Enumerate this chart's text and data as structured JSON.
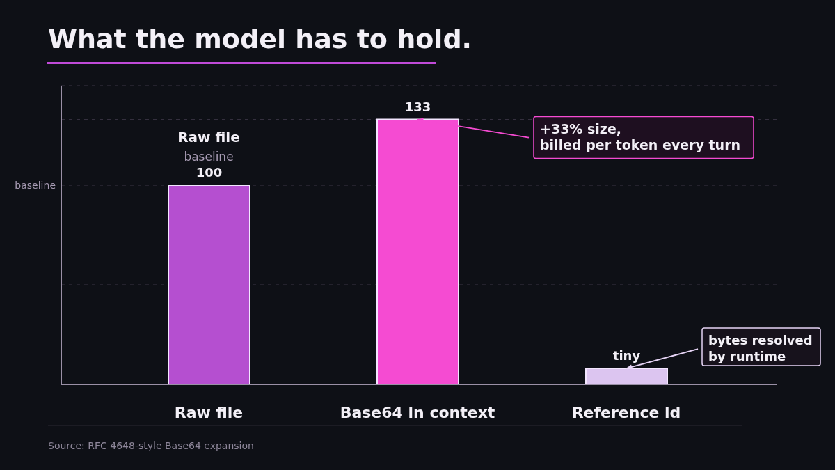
{
  "chart_data": {
    "type": "bar",
    "title": "What the model has to hold.",
    "categories": [
      "Raw file",
      "Base64 in context",
      "Reference id"
    ],
    "values": [
      100,
      133,
      8
    ],
    "colors": [
      "#b54fd0",
      "#f54bd2",
      "#dcc5f0"
    ],
    "value_labels": [
      "100",
      "133",
      "tiny"
    ],
    "ylim": [
      0,
      150
    ],
    "yticks": [
      {
        "value": 50,
        "label": null
      },
      {
        "value": 100,
        "label": "baseline"
      },
      {
        "value": 133,
        "label": null
      }
    ],
    "grid": "y",
    "annotations": [
      {
        "text": "Raw file",
        "x": "Raw file",
        "y": 100
      },
      {
        "text": "baseline",
        "x": "Raw file",
        "y": 100
      },
      {
        "text": "+33% size,\nbilled per token every turn",
        "x": "Base64 in context",
        "y": 133
      },
      {
        "text": "bytes resolved\nby runtime",
        "x": "Reference id",
        "y": 8
      },
      "Source: RFC 4648-style Base64 expansion"
    ]
  }
}
